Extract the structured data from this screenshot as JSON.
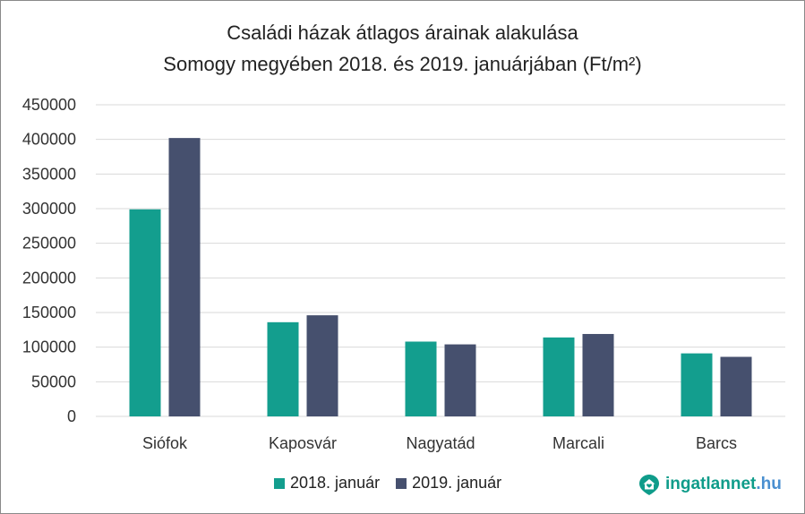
{
  "chart_data": {
    "type": "bar",
    "title_lines": [
      "Családi házak átlagos árainak alakulása",
      "Somogy megyében 2018. és 2019. januárjában (Ft/m²)"
    ],
    "categories": [
      "Siófok",
      "Kaposvár",
      "Nagyatád",
      "Marcali",
      "Barcs"
    ],
    "series": [
      {
        "name": "2018. január",
        "color": "#139e8e",
        "values": [
          299000,
          136000,
          108000,
          114000,
          91000
        ]
      },
      {
        "name": "2019. január",
        "color": "#46506e",
        "values": [
          402000,
          146000,
          104000,
          119000,
          86000
        ]
      }
    ],
    "ylim": [
      0,
      450000
    ],
    "yticks": [
      "0",
      "50000",
      "100000",
      "150000",
      "200000",
      "250000",
      "300000",
      "350000",
      "400000",
      "450000"
    ],
    "grid": true,
    "legend_position": "bottom"
  },
  "brand": {
    "name": "ingatlannet",
    "tld": ".hu",
    "icon": "house-heart-icon",
    "color": "#0f9c8a",
    "tld_color": "#4a8fd0"
  }
}
